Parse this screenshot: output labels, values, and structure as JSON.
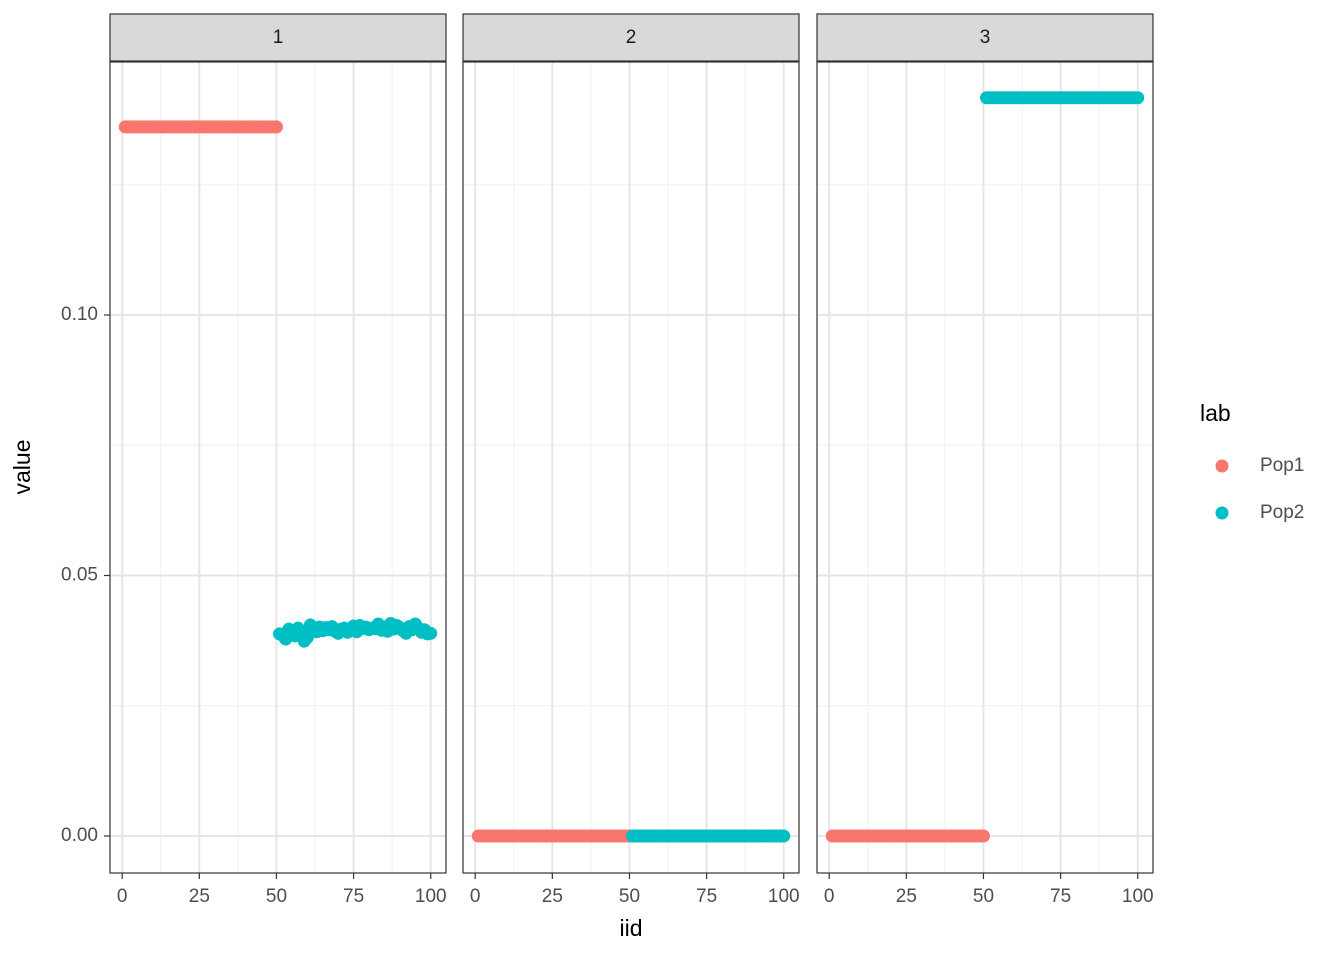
{
  "chart_data": {
    "type": "scatter",
    "xlabel": "iid",
    "ylabel": "value",
    "legend_title": "lab",
    "legend_position": "right",
    "grid": true,
    "xlim": [
      -3.95,
      104.95
    ],
    "xticks": [
      0,
      25,
      50,
      75,
      100
    ],
    "xminor": [
      12.5,
      37.5,
      62.5,
      87.5
    ],
    "ylim": [
      -0.0071,
      0.14856
    ],
    "yticks": [
      {
        "value": 0,
        "label": "0.00"
      },
      {
        "value": 0.05,
        "label": "0.05"
      },
      {
        "value": 0.1,
        "label": "0.10"
      }
    ],
    "yminor": [
      0.025,
      0.075,
      0.125
    ],
    "panels": [
      {
        "strip": "1",
        "series": [
          {
            "name": "Pop1",
            "color": "#F8766D",
            "x": [
              1,
              2,
              3,
              4,
              5,
              6,
              7,
              8,
              9,
              10,
              11,
              12,
              13,
              14,
              15,
              16,
              17,
              18,
              19,
              20,
              21,
              22,
              23,
              24,
              25,
              26,
              27,
              28,
              29,
              30,
              31,
              32,
              33,
              34,
              35,
              36,
              37,
              38,
              39,
              40,
              41,
              42,
              43,
              44,
              45,
              46,
              47,
              48,
              49,
              50
            ],
            "values": [
              0.1361,
              0.1361,
              0.1361,
              0.1361,
              0.1361,
              0.1361,
              0.1361,
              0.1361,
              0.1361,
              0.1361,
              0.1361,
              0.1361,
              0.1361,
              0.1361,
              0.1361,
              0.1361,
              0.1361,
              0.1361,
              0.1361,
              0.1361,
              0.1361,
              0.1361,
              0.1361,
              0.1361,
              0.1361,
              0.1361,
              0.1361,
              0.1361,
              0.1361,
              0.1361,
              0.1361,
              0.1361,
              0.1361,
              0.1361,
              0.1361,
              0.1361,
              0.1361,
              0.1361,
              0.1361,
              0.1361,
              0.1361,
              0.1361,
              0.1361,
              0.1361,
              0.1361,
              0.1361,
              0.1361,
              0.1361,
              0.1361,
              0.1361
            ]
          },
          {
            "name": "Pop2",
            "color": "#00BFC4",
            "x": [
              51,
              52,
              53,
              54,
              55,
              56,
              57,
              58,
              59,
              60,
              61,
              62,
              63,
              64,
              65,
              66,
              67,
              68,
              69,
              70,
              71,
              72,
              73,
              74,
              75,
              76,
              77,
              78,
              79,
              80,
              81,
              82,
              83,
              84,
              85,
              86,
              87,
              88,
              89,
              90,
              91,
              92,
              93,
              94,
              95,
              96,
              97,
              98,
              99,
              100
            ],
            "values": [
              0.0388,
              0.0385,
              0.0378,
              0.0397,
              0.039,
              0.0384,
              0.0399,
              0.0389,
              0.0374,
              0.0381,
              0.0405,
              0.0398,
              0.0392,
              0.0401,
              0.0394,
              0.04,
              0.0396,
              0.0402,
              0.0393,
              0.0389,
              0.0397,
              0.0399,
              0.0391,
              0.0395,
              0.0403,
              0.0392,
              0.0404,
              0.0398,
              0.0401,
              0.0396,
              0.0399,
              0.0398,
              0.0407,
              0.0395,
              0.0401,
              0.0393,
              0.0408,
              0.0397,
              0.0404,
              0.04,
              0.0394,
              0.0389,
              0.0402,
              0.0396,
              0.0407,
              0.0399,
              0.0391,
              0.0396,
              0.0388,
              0.0389
            ]
          }
        ]
      },
      {
        "strip": "2",
        "series": [
          {
            "name": "Pop1",
            "color": "#F8766D",
            "x": [
              1,
              2,
              3,
              4,
              5,
              6,
              7,
              8,
              9,
              10,
              11,
              12,
              13,
              14,
              15,
              16,
              17,
              18,
              19,
              20,
              21,
              22,
              23,
              24,
              25,
              26,
              27,
              28,
              29,
              30,
              31,
              32,
              33,
              34,
              35,
              36,
              37,
              38,
              39,
              40,
              41,
              42,
              43,
              44,
              45,
              46,
              47,
              48,
              49,
              50
            ],
            "values": [
              0,
              0,
              0,
              0,
              0,
              0,
              0,
              0,
              0,
              0,
              0,
              0,
              0,
              0,
              0,
              0,
              0,
              0,
              0,
              0,
              0,
              0,
              0,
              0,
              0,
              0,
              0,
              0,
              0,
              0,
              0,
              0,
              0,
              0,
              0,
              0,
              0,
              0,
              0,
              0,
              0,
              0,
              0,
              0,
              0,
              0,
              0,
              0,
              0,
              0
            ]
          },
          {
            "name": "Pop2",
            "color": "#00BFC4",
            "x": [
              51,
              52,
              53,
              54,
              55,
              56,
              57,
              58,
              59,
              60,
              61,
              62,
              63,
              64,
              65,
              66,
              67,
              68,
              69,
              70,
              71,
              72,
              73,
              74,
              75,
              76,
              77,
              78,
              79,
              80,
              81,
              82,
              83,
              84,
              85,
              86,
              87,
              88,
              89,
              90,
              91,
              92,
              93,
              94,
              95,
              96,
              97,
              98,
              99,
              100
            ],
            "values": [
              0,
              0,
              0,
              0,
              0,
              0,
              0,
              0,
              0,
              0,
              0,
              0,
              0,
              0,
              0,
              0,
              0,
              0,
              0,
              0,
              0,
              0,
              0,
              0,
              0,
              0,
              0,
              0,
              0,
              0,
              0,
              0,
              0,
              0,
              0,
              0,
              0,
              0,
              0,
              0,
              0,
              0,
              0,
              0,
              0,
              0,
              0,
              0,
              0,
              0
            ]
          }
        ]
      },
      {
        "strip": "3",
        "series": [
          {
            "name": "Pop1",
            "color": "#F8766D",
            "x": [
              1,
              2,
              3,
              4,
              5,
              6,
              7,
              8,
              9,
              10,
              11,
              12,
              13,
              14,
              15,
              16,
              17,
              18,
              19,
              20,
              21,
              22,
              23,
              24,
              25,
              26,
              27,
              28,
              29,
              30,
              31,
              32,
              33,
              34,
              35,
              36,
              37,
              38,
              39,
              40,
              41,
              42,
              43,
              44,
              45,
              46,
              47,
              48,
              49,
              50
            ],
            "values": [
              0,
              0,
              0,
              0,
              0,
              0,
              0,
              0,
              0,
              0,
              0,
              0,
              0,
              0,
              0,
              0,
              0,
              0,
              0,
              0,
              0,
              0,
              0,
              0,
              0,
              0,
              0,
              0,
              0,
              0,
              0,
              0,
              0,
              0,
              0,
              0,
              0,
              0,
              0,
              0,
              0,
              0,
              0,
              0,
              0,
              0,
              0,
              0,
              0,
              0
            ]
          },
          {
            "name": "Pop2",
            "color": "#00BFC4",
            "x": [
              51,
              52,
              53,
              54,
              55,
              56,
              57,
              58,
              59,
              60,
              61,
              62,
              63,
              64,
              65,
              66,
              67,
              68,
              69,
              70,
              71,
              72,
              73,
              74,
              75,
              76,
              77,
              78,
              79,
              80,
              81,
              82,
              83,
              84,
              85,
              86,
              87,
              88,
              89,
              90,
              91,
              92,
              93,
              94,
              95,
              96,
              97,
              98,
              99,
              100
            ],
            "values": [
              0.1417,
              0.1417,
              0.1417,
              0.1417,
              0.1417,
              0.1417,
              0.1417,
              0.1417,
              0.1417,
              0.1417,
              0.1417,
              0.1417,
              0.1417,
              0.1417,
              0.1417,
              0.1417,
              0.1417,
              0.1417,
              0.1417,
              0.1417,
              0.1417,
              0.1417,
              0.1417,
              0.1417,
              0.1417,
              0.1417,
              0.1417,
              0.1417,
              0.1417,
              0.1417,
              0.1417,
              0.1417,
              0.1417,
              0.1417,
              0.1417,
              0.1417,
              0.1417,
              0.1417,
              0.1417,
              0.1417,
              0.1417,
              0.1417,
              0.1417,
              0.1417,
              0.1417,
              0.1417,
              0.1417,
              0.1417,
              0.1417,
              0.1417
            ]
          }
        ]
      }
    ]
  }
}
